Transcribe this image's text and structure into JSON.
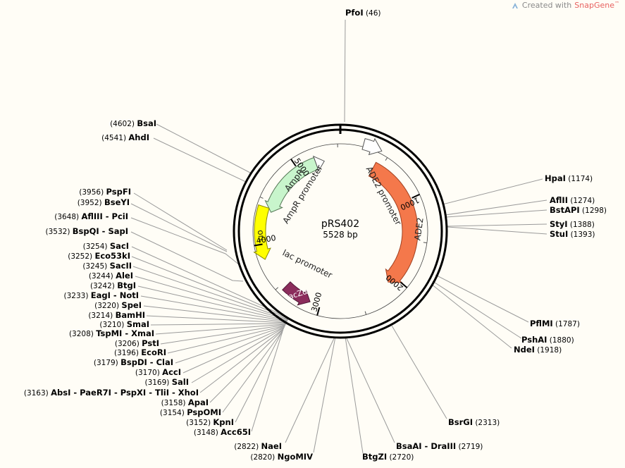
{
  "credit": {
    "prefix": "Created with",
    "brand": "SnapGene",
    "tm": "™"
  },
  "plasmid": {
    "name": "pRS402",
    "length_label": "5528 bp",
    "length": 5528
  },
  "ticks": [
    "1000",
    "2000",
    "3000",
    "4000",
    "5000"
  ],
  "features": [
    {
      "name": "AmpR",
      "color": "#c8f5cc"
    },
    {
      "name": "AmpR promoter",
      "color": "#ffffff"
    },
    {
      "name": "ADE2 promoter",
      "color": "#ffffff"
    },
    {
      "name": "ADE2",
      "color": "#f4784b"
    },
    {
      "name": "ori",
      "color": "#ffff00"
    },
    {
      "name": "lacZα",
      "color": "#8b2d5c"
    },
    {
      "name": "lac promoter",
      "color": "#ffffff"
    }
  ],
  "sites": [
    {
      "name": "PfoI",
      "pos": "(46)"
    },
    {
      "name": "BsaI",
      "pos": "(4602)"
    },
    {
      "name": "AhdI",
      "pos": "(4541)"
    },
    {
      "name": "PspFI",
      "pos": "(3956)"
    },
    {
      "name": "BseYI",
      "pos": "(3952)"
    },
    {
      "name": "AflIII - PciI",
      "pos": "(3648)"
    },
    {
      "name": "BspQI - SapI",
      "pos": "(3532)"
    },
    {
      "name": "SacI",
      "pos": "(3254)"
    },
    {
      "name": "Eco53kI",
      "pos": "(3252)"
    },
    {
      "name": "SacII",
      "pos": "(3245)"
    },
    {
      "name": "AleI",
      "pos": "(3244)"
    },
    {
      "name": "BtgI",
      "pos": "(3242)"
    },
    {
      "name": "EagI - NotI",
      "pos": "(3233)"
    },
    {
      "name": "SpeI",
      "pos": "(3220)"
    },
    {
      "name": "BamHI",
      "pos": "(3214)"
    },
    {
      "name": "SmaI",
      "pos": "(3210)"
    },
    {
      "name": "TspMI - XmaI",
      "pos": "(3208)"
    },
    {
      "name": "PstI",
      "pos": "(3206)"
    },
    {
      "name": "EcoRI",
      "pos": "(3196)"
    },
    {
      "name": "BspDI - ClaI",
      "pos": "(3179)"
    },
    {
      "name": "AccI",
      "pos": "(3170)"
    },
    {
      "name": "SalI",
      "pos": "(3169)"
    },
    {
      "name": "AbsI - PaeR7I - PspXI - TliI - XhoI",
      "pos": "(3163)"
    },
    {
      "name": "ApaI",
      "pos": "(3158)"
    },
    {
      "name": "PspOMI",
      "pos": "(3154)"
    },
    {
      "name": "KpnI",
      "pos": "(3152)"
    },
    {
      "name": "Acc65I",
      "pos": "(3148)"
    },
    {
      "name": "NaeI",
      "pos": "(2822)"
    },
    {
      "name": "NgoMIV",
      "pos": "(2820)"
    },
    {
      "name": "BtgZI",
      "pos": "(2720)"
    },
    {
      "name": "BsaAI - DraIII",
      "pos": "(2719)"
    },
    {
      "name": "BsrGI",
      "pos": "(2313)"
    },
    {
      "name": "NdeI",
      "pos": "(1918)"
    },
    {
      "name": "PshAI",
      "pos": "(1880)"
    },
    {
      "name": "PflMI",
      "pos": "(1787)"
    },
    {
      "name": "StuI",
      "pos": "(1393)"
    },
    {
      "name": "StyI",
      "pos": "(1388)"
    },
    {
      "name": "BstAPI",
      "pos": "(1298)"
    },
    {
      "name": "AflII",
      "pos": "(1274)"
    },
    {
      "name": "HpaI",
      "pos": "(1174)"
    }
  ]
}
